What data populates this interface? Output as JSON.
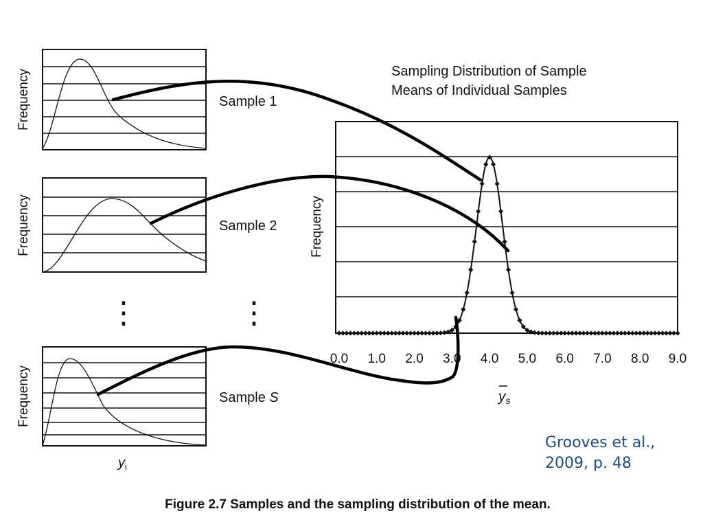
{
  "panels": [
    {
      "label": "Sample 1",
      "ylabel": "Frequency"
    },
    {
      "label": "Sample 2",
      "ylabel": "Frequency"
    },
    {
      "label_prefix": "Sample ",
      "label_var": "S",
      "ylabel": "Frequency"
    }
  ],
  "panel_xlabel": {
    "var": "y",
    "sub": "i"
  },
  "main": {
    "title_lines": [
      "Sampling Distribution of Sample",
      "Means of Individual Samples"
    ],
    "ylabel": "Frequency",
    "xlabel": {
      "var": "y",
      "sub": "s"
    },
    "ticks": [
      "0.0",
      "1.0",
      "2.0",
      "3.0",
      "4.0",
      "5.0",
      "6.0",
      "7.0",
      "8.0",
      "9.0"
    ],
    "curve_center": 4.0,
    "curve_sd": 0.35
  },
  "ellipsis": "⋮",
  "caption": "Figure 2.7  Samples and the sampling distribution of the mean.",
  "credit_lines": [
    "Grooves et al.,",
    "2009, p. 48"
  ]
}
